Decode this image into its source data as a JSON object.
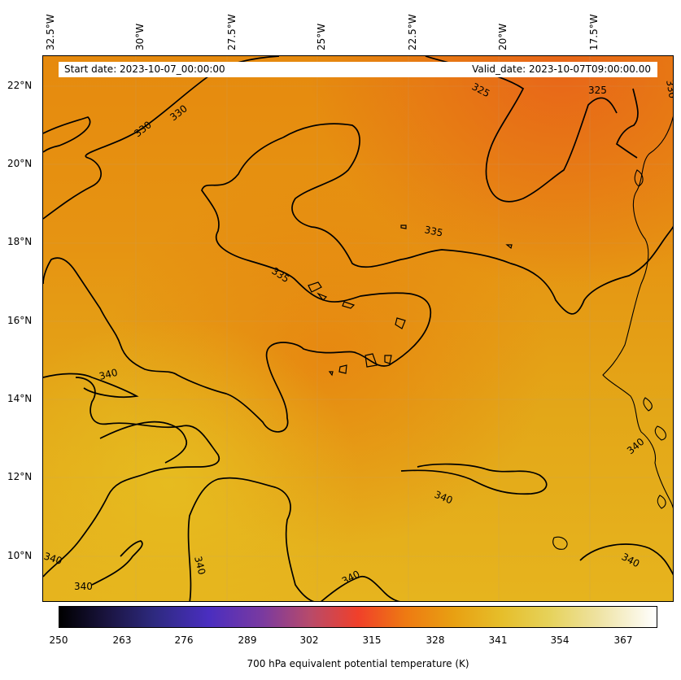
{
  "map": {
    "start_date": "Start date: 2023-10-07_00:00:00",
    "valid_date": "Valid_date: 2023-10-07T09:00:00.00",
    "lon_labels": [
      "32.5°W",
      "30°W",
      "27.5°W",
      "25°W",
      "22.5°W",
      "20°W",
      "17.5°W"
    ],
    "lat_labels": [
      "22°N",
      "20°N",
      "18°N",
      "16°N",
      "14°N",
      "12°N",
      "10°N"
    ],
    "contour_labels": [
      "330",
      "330",
      "330",
      "325",
      "325",
      "335",
      "335",
      "340",
      "340",
      "340",
      "340",
      "340",
      "340",
      "340",
      "340"
    ],
    "colors": {
      "warm_orange": "#e88a0c",
      "dark_orange": "#e86e14",
      "gold": "#e6b11e",
      "contour": "#000000",
      "coast": "#000000"
    }
  },
  "colorbar": {
    "label": "700 hPa equivalent potential temperature (K)",
    "ticks": [
      "250",
      "263",
      "276",
      "289",
      "302",
      "315",
      "328",
      "341",
      "354",
      "367"
    ],
    "colormap": "CMRmap"
  }
}
